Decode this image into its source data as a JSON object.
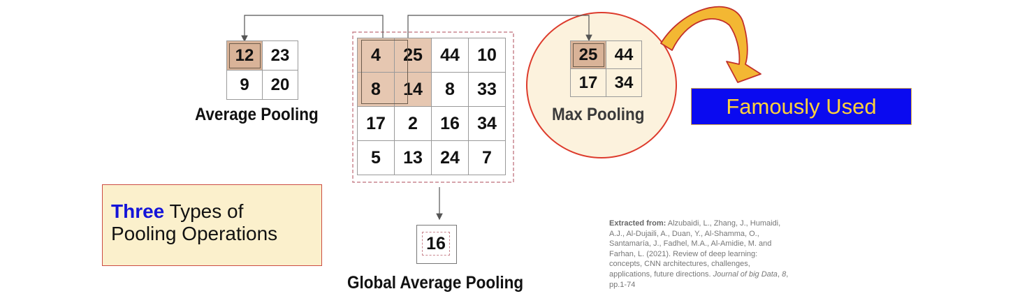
{
  "input_grid": {
    "rows": [
      [
        "4",
        "25",
        "44",
        "10"
      ],
      [
        "8",
        "14",
        "8",
        "33"
      ],
      [
        "17",
        "2",
        "16",
        "34"
      ],
      [
        "5",
        "13",
        "24",
        "7"
      ]
    ]
  },
  "average_pooling": {
    "label": "Average Pooling",
    "rows": [
      [
        "12",
        "23"
      ],
      [
        "9",
        "20"
      ]
    ]
  },
  "max_pooling": {
    "label": "Max Pooling",
    "rows": [
      [
        "25",
        "44"
      ],
      [
        "17",
        "34"
      ]
    ]
  },
  "global_average_pooling": {
    "label": "Global Average Pooling",
    "value": "16"
  },
  "callout": {
    "text": "Famously Used"
  },
  "types_box": {
    "highlight": "Three",
    "line1_rest": " Types of",
    "line2": "Pooling Operations"
  },
  "citation": {
    "lead": "Extracted from:",
    "body": " Alzubaidi, L., Zhang, J., Humaidi, A.J., Al-Dujaili, A., Duan, Y., Al-Shamma, O., Santamaría, J., Fadhel, M.A., Al-Amidie, M. and Farhan, L. (2021). Review of deep learning: concepts, CNN architectures, challenges, applications, future directions. ",
    "journal": "Journal of big Data",
    "sep": ", ",
    "volume": "8",
    "pages": ", pp.1-74"
  },
  "colors": {
    "highlight_cell": "#e6c7b1",
    "circle_fill": "#fcf2dd",
    "circle_border": "#dd3b2c",
    "callout_bg": "#0a0af0",
    "callout_text": "#ffd23a",
    "arrow_fill": "#f3b733",
    "arrow_stroke": "#c2302a",
    "types_box_bg": "#fbf0cc",
    "three_text": "#1414d8"
  },
  "icons": {
    "curved_arrow": "curved-arrow-icon"
  }
}
